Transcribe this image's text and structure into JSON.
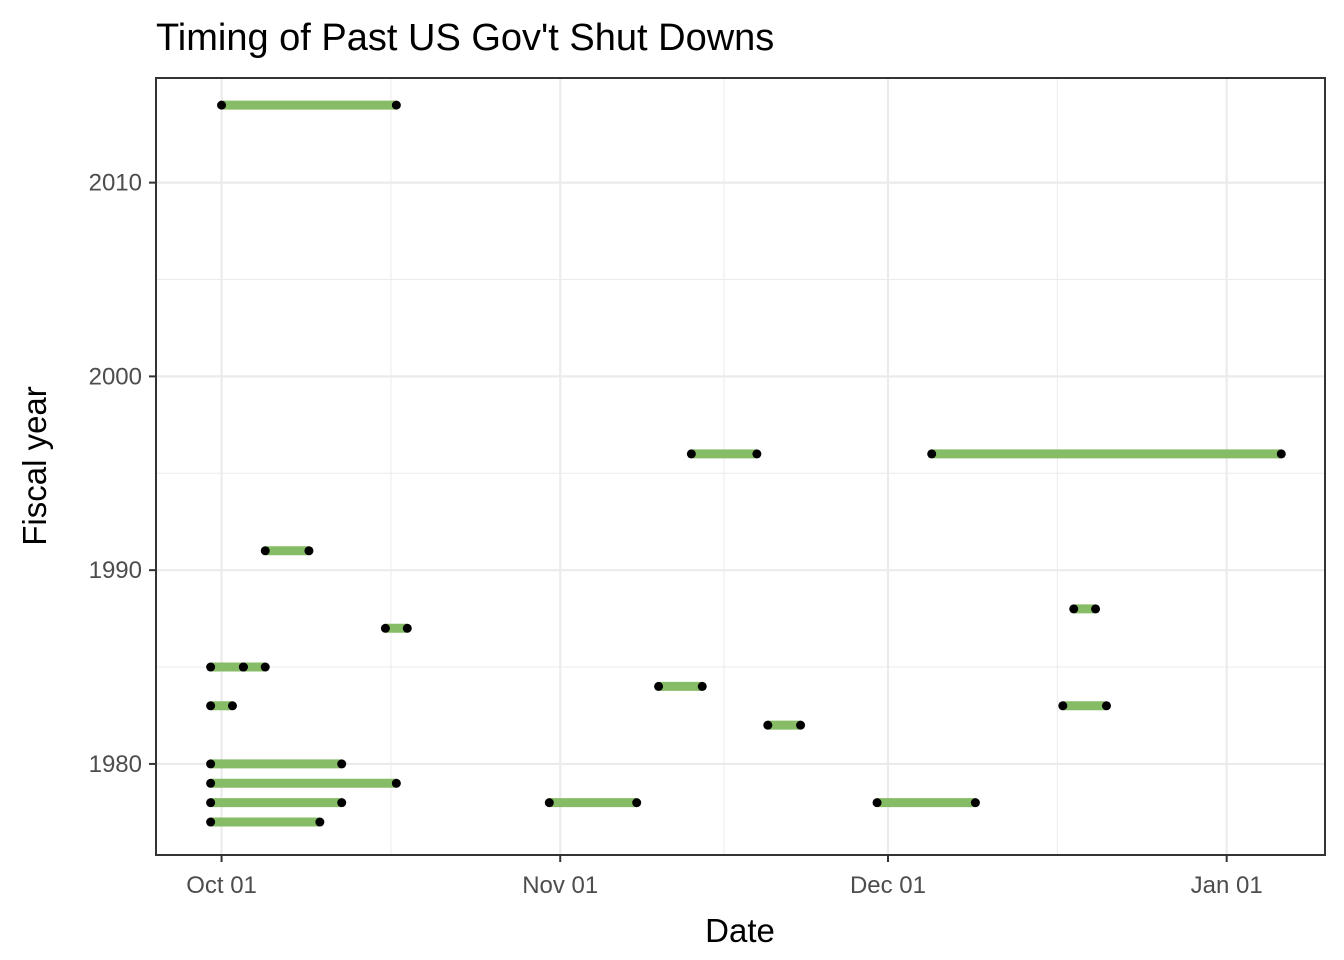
{
  "chart_data": {
    "type": "range-dot",
    "title": "Timing of Past US Gov't Shut Downs",
    "xlabel": "Date",
    "ylabel": "Fiscal year",
    "x_ticks": [
      "Oct 01",
      "Nov 01",
      "Dec 01",
      "Jan 01"
    ],
    "y_ticks": [
      "1980",
      "1990",
      "2000",
      "2010"
    ],
    "x_tick_days": [
      0,
      31,
      61,
      92
    ],
    "y_tick_values": [
      1980,
      1990,
      2000,
      2010
    ],
    "xlim_days": [
      -6,
      101
    ],
    "ylim": [
      1975.3,
      2015.4
    ],
    "grid": true,
    "colors": {
      "segment": "#86bc65",
      "point": "#000000",
      "grid": "#ebebeb",
      "panel_border": "#333333"
    },
    "segments": [
      {
        "fiscal_year": 1977,
        "start": "Sep 30",
        "end": "Oct 10"
      },
      {
        "fiscal_year": 1978,
        "start": "Sep 30",
        "end": "Oct 12"
      },
      {
        "fiscal_year": 1978,
        "start": "Oct 31",
        "end": "Nov 08"
      },
      {
        "fiscal_year": 1978,
        "start": "Nov 30",
        "end": "Dec 09"
      },
      {
        "fiscal_year": 1979,
        "start": "Sep 30",
        "end": "Oct 17"
      },
      {
        "fiscal_year": 1980,
        "start": "Sep 30",
        "end": "Oct 12"
      },
      {
        "fiscal_year": 1982,
        "start": "Nov 20",
        "end": "Nov 23"
      },
      {
        "fiscal_year": 1983,
        "start": "Sep 30",
        "end": "Oct 02"
      },
      {
        "fiscal_year": 1983,
        "start": "Dec 17",
        "end": "Dec 21"
      },
      {
        "fiscal_year": 1984,
        "start": "Nov 10",
        "end": "Nov 14"
      },
      {
        "fiscal_year": 1985,
        "start": "Sep 30",
        "end": "Oct 03"
      },
      {
        "fiscal_year": 1985,
        "start": "Oct 03",
        "end": "Oct 05"
      },
      {
        "fiscal_year": 1987,
        "start": "Oct 16",
        "end": "Oct 18"
      },
      {
        "fiscal_year": 1988,
        "start": "Dec 18",
        "end": "Dec 20"
      },
      {
        "fiscal_year": 1991,
        "start": "Oct 05",
        "end": "Oct 09"
      },
      {
        "fiscal_year": 1996,
        "start": "Nov 13",
        "end": "Nov 19"
      },
      {
        "fiscal_year": 1996,
        "start": "Dec 05",
        "end": "Jan 06"
      },
      {
        "fiscal_year": 2014,
        "start": "Oct 01",
        "end": "Oct 17"
      }
    ]
  }
}
